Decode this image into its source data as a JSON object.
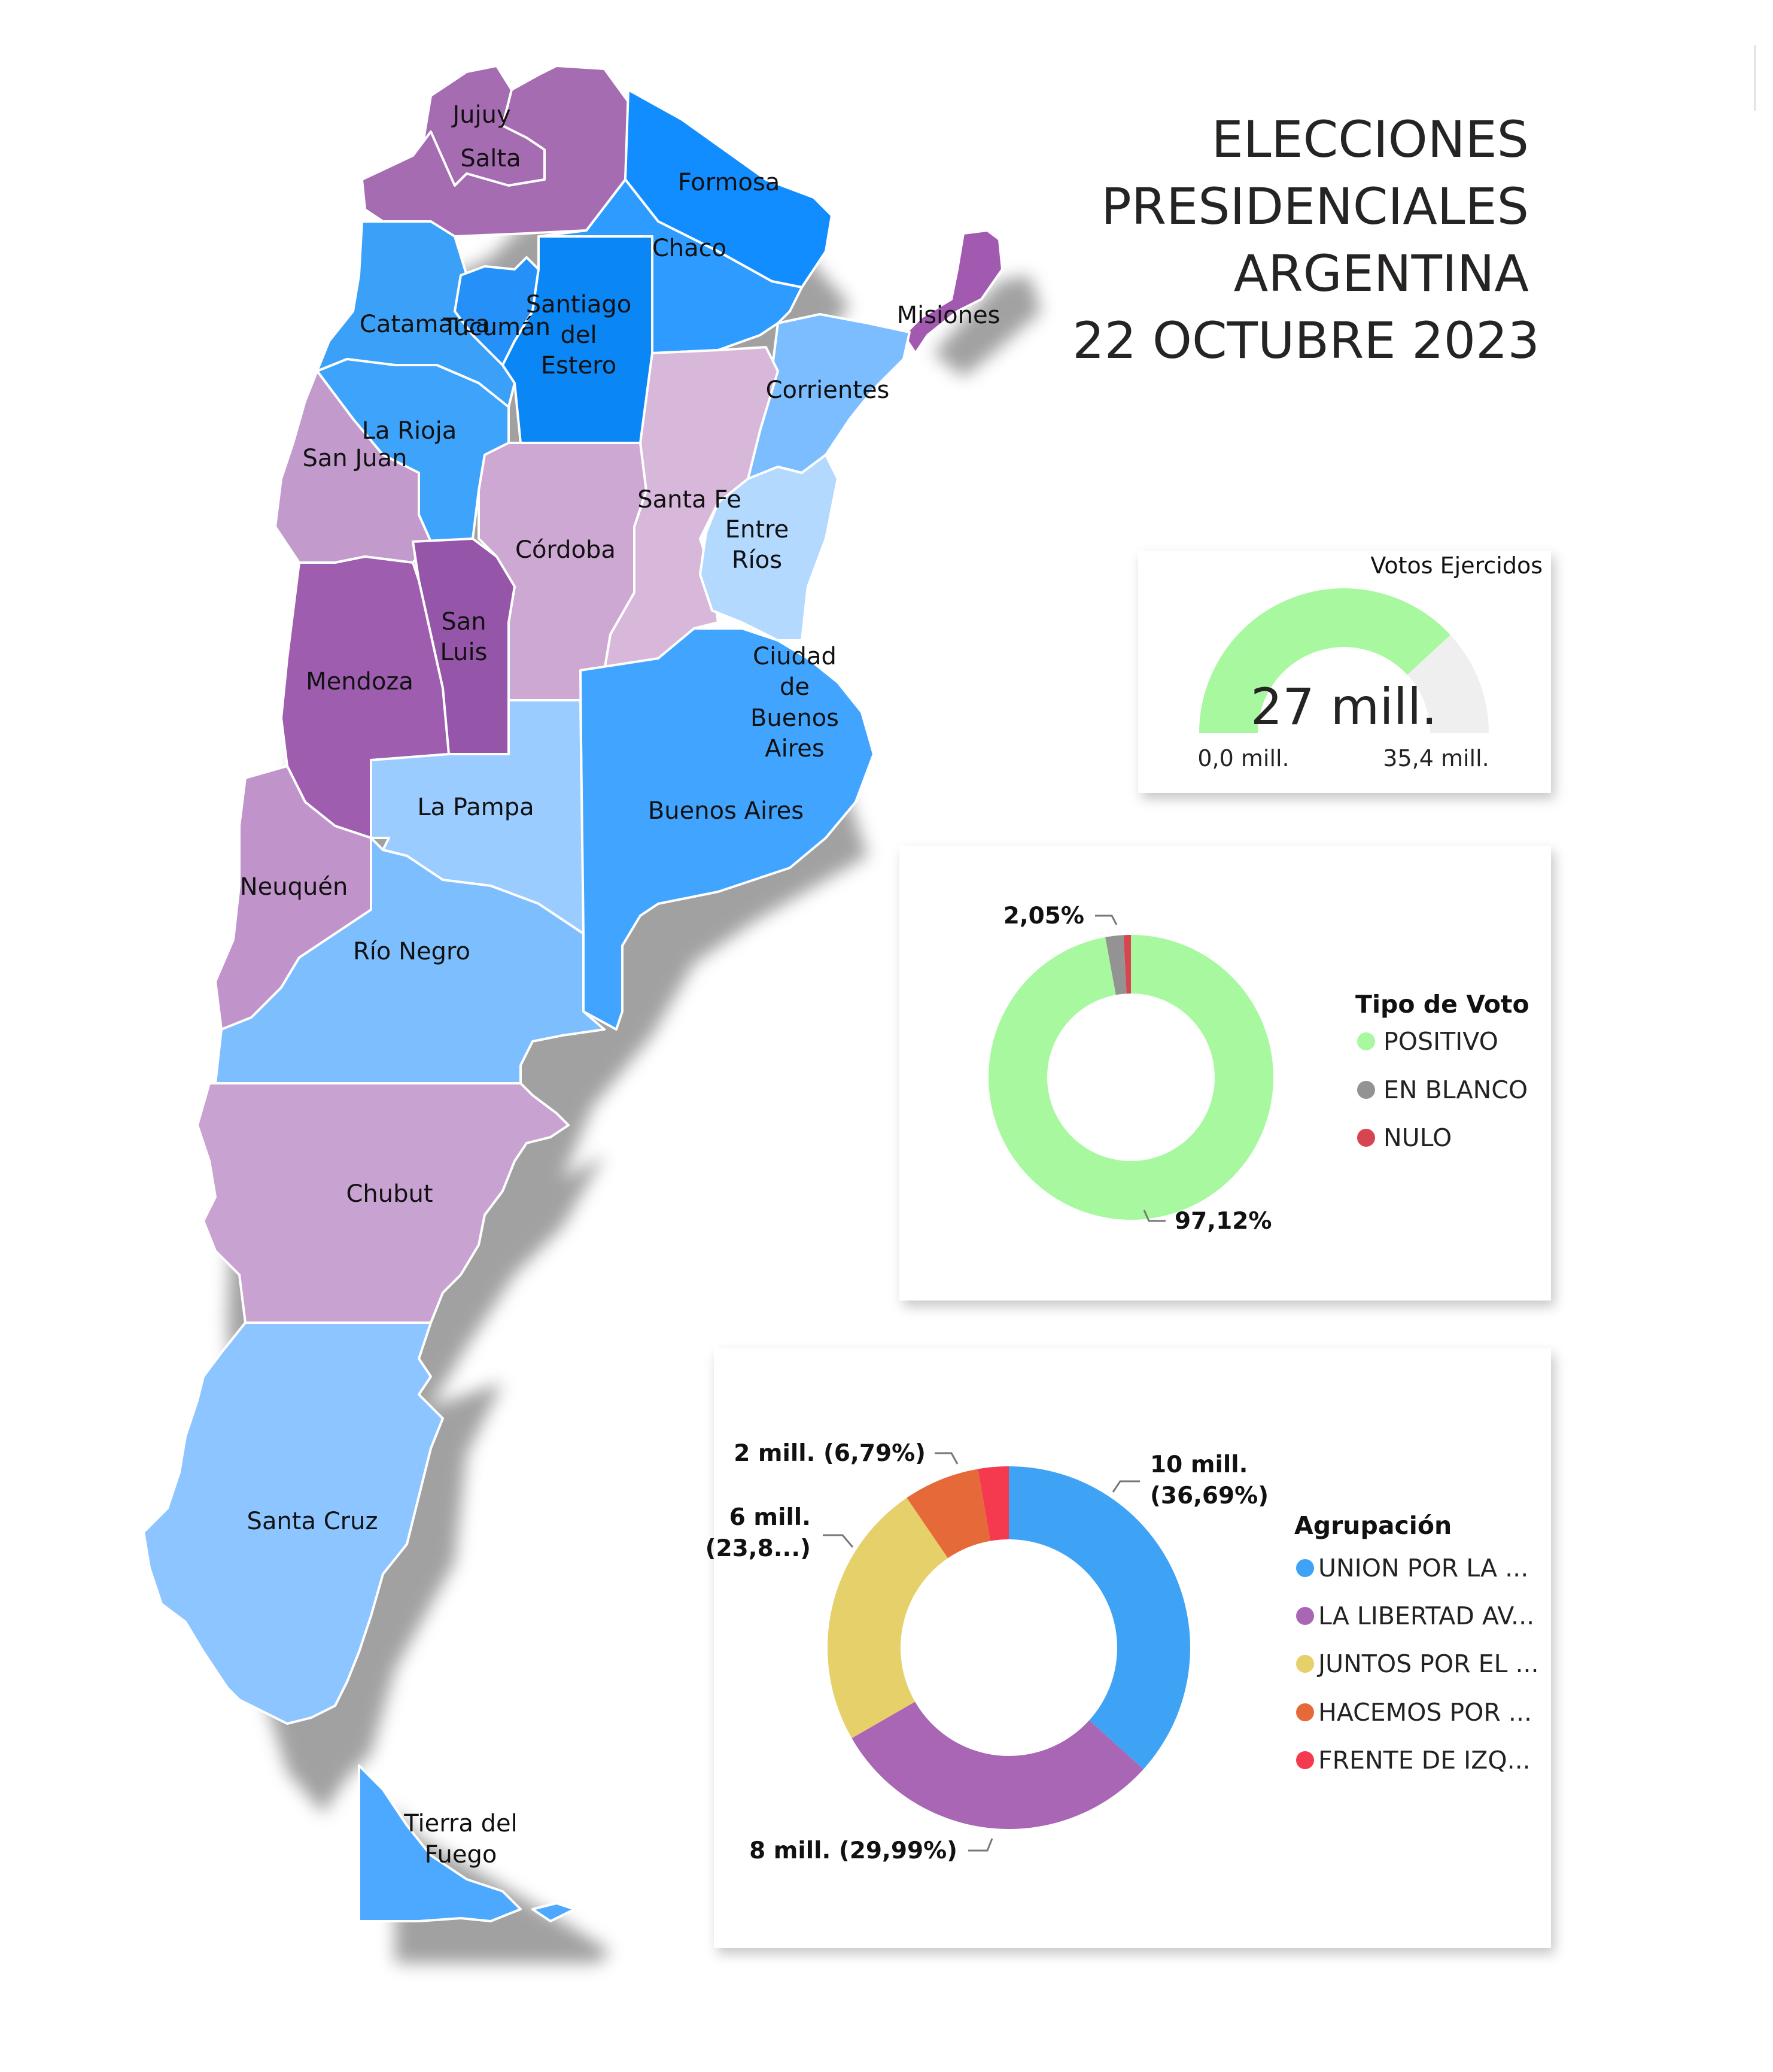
{
  "title": {
    "lines": [
      "ELECCIONES",
      "PRESIDENCIALES",
      "ARGENTINA",
      "22 OCTUBRE 2023"
    ]
  },
  "map": {
    "provinces": [
      {
        "name": "Jujuy",
        "color": "#A56CB2"
      },
      {
        "name": "Salta",
        "color": "#A56CB2"
      },
      {
        "name": "Formosa",
        "color": "#118DFF"
      },
      {
        "name": "Chaco",
        "color": "#2D9BFF"
      },
      {
        "name": "Misiones",
        "color": "#A259B0"
      },
      {
        "name": "Catamarca",
        "color": "#3BA1F8"
      },
      {
        "name": "Tucumán",
        "color": "#2590F8"
      },
      {
        "name": "Santiago del Estero",
        "color": "#0A86F5"
      },
      {
        "name": "Corrientes",
        "color": "#7BBDFF"
      },
      {
        "name": "La Rioja",
        "color": "#3EA3FA"
      },
      {
        "name": "San Juan",
        "color": "#C29BCC"
      },
      {
        "name": "Santa Fe",
        "color": "#D7B8DA"
      },
      {
        "name": "Entre Ríos",
        "color": "#B3D9FF"
      },
      {
        "name": "Córdoba",
        "color": "#CDA8D2"
      },
      {
        "name": "San Luis",
        "color": "#9555A8"
      },
      {
        "name": "Mendoza",
        "color": "#9E5DAE"
      },
      {
        "name": "Ciudad de Buenos Aires",
        "color": "#49A9FF"
      },
      {
        "name": "Buenos Aires",
        "color": "#41A5FF"
      },
      {
        "name": "La Pampa",
        "color": "#9ACCFF"
      },
      {
        "name": "Neuquén",
        "color": "#C193CB"
      },
      {
        "name": "Río Negro",
        "color": "#7DBEFF"
      },
      {
        "name": "Chubut",
        "color": "#C8A2D0"
      },
      {
        "name": "Santa Cruz",
        "color": "#8CC5FF"
      },
      {
        "name": "Tierra del Fuego",
        "color": "#4DA9FF"
      }
    ]
  },
  "gauge": {
    "title": "Votos Ejercidos",
    "value_text": "27 mill.",
    "min_text": "0,0 mill.",
    "max_text": "35,4 mill.",
    "value": 27,
    "min": 0,
    "max": 35.4,
    "fill_color": "#A8F8A0",
    "track_color": "#EFEFEF"
  },
  "tipo_voto": {
    "legend_title": "Tipo de Voto",
    "slices": [
      {
        "name": "POSITIVO",
        "percent": 97.12,
        "label": "97,12%",
        "color": "#A8F8A0"
      },
      {
        "name": "EN BLANCO",
        "percent": 2.05,
        "label": "2,05%",
        "color": "#939393"
      },
      {
        "name": "NULO",
        "percent": 0.83,
        "label": "",
        "color": "#D64550"
      }
    ]
  },
  "agrupacion": {
    "legend_title": "Agrupación",
    "slices": [
      {
        "name": "UNION POR LA ...",
        "percent": 36.69,
        "label_lines": [
          "10 mill.",
          "(36,69%)"
        ],
        "color": "#3FA3F5"
      },
      {
        "name": "LA LIBERTAD AV...",
        "percent": 29.99,
        "label_lines": [
          "8 mill. (29,99%)"
        ],
        "color": "#A866B5"
      },
      {
        "name": "JUNTOS POR EL ...",
        "percent": 23.8,
        "label_lines": [
          "6 mill.",
          "(23,8...)"
        ],
        "color": "#E6D06A"
      },
      {
        "name": "HACEMOS POR ...",
        "percent": 6.79,
        "label_lines": [
          "2 mill. (6,79%)"
        ],
        "color": "#E6693A"
      },
      {
        "name": "FRENTE DE IZQ...",
        "percent": 2.73,
        "label_lines": [],
        "color": "#F5394E"
      }
    ]
  }
}
